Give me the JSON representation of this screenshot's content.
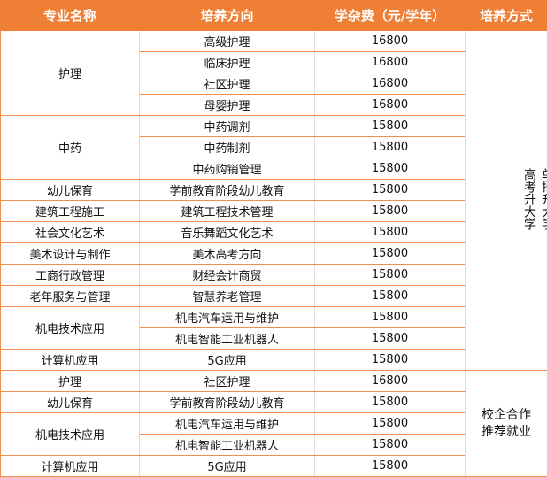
{
  "headers": [
    "专业名称",
    "培养方向",
    "学杂费（元/学年）",
    "培养方式"
  ],
  "colors": {
    "header_bg": "#ee7f35",
    "border": "#ee8f4f"
  },
  "sections": [
    {
      "mode_columns": [
        "高考升大学",
        "单招升大学"
      ],
      "majors": [
        {
          "name": "护理",
          "directions": [
            {
              "name": "高级护理",
              "fee": "16800"
            },
            {
              "name": "临床护理",
              "fee": "16800"
            },
            {
              "name": "社区护理",
              "fee": "16800"
            },
            {
              "name": "母婴护理",
              "fee": "16800"
            }
          ]
        },
        {
          "name": "中药",
          "directions": [
            {
              "name": "中药调剂",
              "fee": "15800"
            },
            {
              "name": "中药制剂",
              "fee": "15800"
            },
            {
              "name": "中药购销管理",
              "fee": "15800"
            }
          ]
        },
        {
          "name": "幼儿保育",
          "directions": [
            {
              "name": "学前教育阶段幼儿教育",
              "fee": "15800"
            }
          ]
        },
        {
          "name": "建筑工程施工",
          "directions": [
            {
              "name": "建筑工程技术管理",
              "fee": "15800"
            }
          ]
        },
        {
          "name": "社会文化艺术",
          "directions": [
            {
              "name": "音乐舞蹈文化艺术",
              "fee": "15800"
            }
          ]
        },
        {
          "name": "美术设计与制作",
          "directions": [
            {
              "name": "美术高考方向",
              "fee": "15800"
            }
          ]
        },
        {
          "name": "工商行政管理",
          "directions": [
            {
              "name": "财经会计商贸",
              "fee": "15800"
            }
          ]
        },
        {
          "name": "老年服务与管理",
          "directions": [
            {
              "name": "智慧养老管理",
              "fee": "15800"
            }
          ]
        },
        {
          "name": "机电技术应用",
          "directions": [
            {
              "name": "机电汽车运用与维护",
              "fee": "15800"
            },
            {
              "name": "机电智能工业机器人",
              "fee": "15800"
            }
          ]
        },
        {
          "name": "计算机应用",
          "directions": [
            {
              "name": "5G应用",
              "fee": "15800"
            }
          ]
        }
      ]
    },
    {
      "mode_lines": [
        "校企合作",
        "推荐就业"
      ],
      "majors": [
        {
          "name": "护理",
          "directions": [
            {
              "name": "社区护理",
              "fee": "16800"
            }
          ]
        },
        {
          "name": "幼儿保育",
          "directions": [
            {
              "name": "学前教育阶段幼儿教育",
              "fee": "15800"
            }
          ]
        },
        {
          "name": "机电技术应用",
          "directions": [
            {
              "name": "机电汽车运用与维护",
              "fee": "15800"
            },
            {
              "name": "机电智能工业机器人",
              "fee": "15800"
            }
          ]
        },
        {
          "name": "计算机应用",
          "directions": [
            {
              "name": "5G应用",
              "fee": "15800"
            }
          ]
        }
      ]
    }
  ]
}
